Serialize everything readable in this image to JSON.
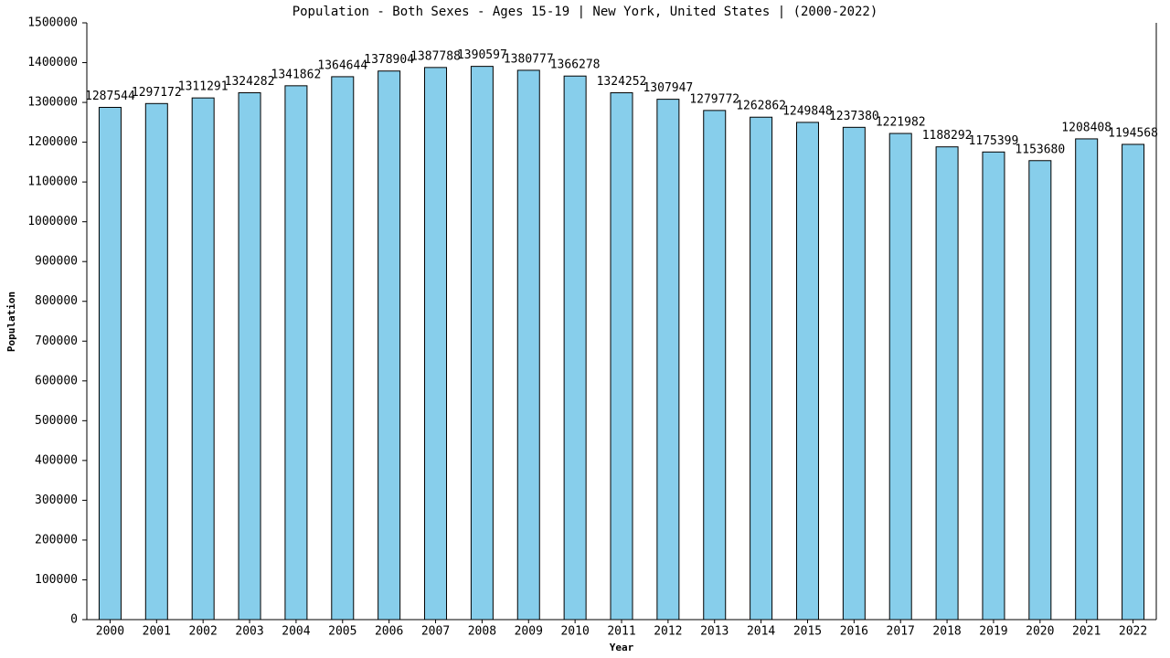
{
  "chart_data": {
    "type": "bar",
    "title": "Population - Both Sexes - Ages 15-19 | New York, United States |  (2000-2022)",
    "x_label": "Year",
    "y_label": "Population",
    "categories": [
      "2000",
      "2001",
      "2002",
      "2003",
      "2004",
      "2005",
      "2006",
      "2007",
      "2008",
      "2009",
      "2010",
      "2011",
      "2012",
      "2013",
      "2014",
      "2015",
      "2016",
      "2017",
      "2018",
      "2019",
      "2020",
      "2021",
      "2022"
    ],
    "values": [
      1287544,
      1297172,
      1311291,
      1324282,
      1341862,
      1364644,
      1378904,
      1387788,
      1390597,
      1380777,
      1366278,
      1324252,
      1307947,
      1279772,
      1262862,
      1249848,
      1237380,
      1221982,
      1188292,
      1175399,
      1153680,
      1208408,
      1194568
    ],
    "color": "#87ceeb",
    "ylim": [
      0,
      1500000
    ],
    "yticks": [
      0,
      100000,
      200000,
      300000,
      400000,
      500000,
      600000,
      700000,
      800000,
      900000,
      1000000,
      1100000,
      1200000,
      1300000,
      1400000,
      1500000
    ]
  }
}
